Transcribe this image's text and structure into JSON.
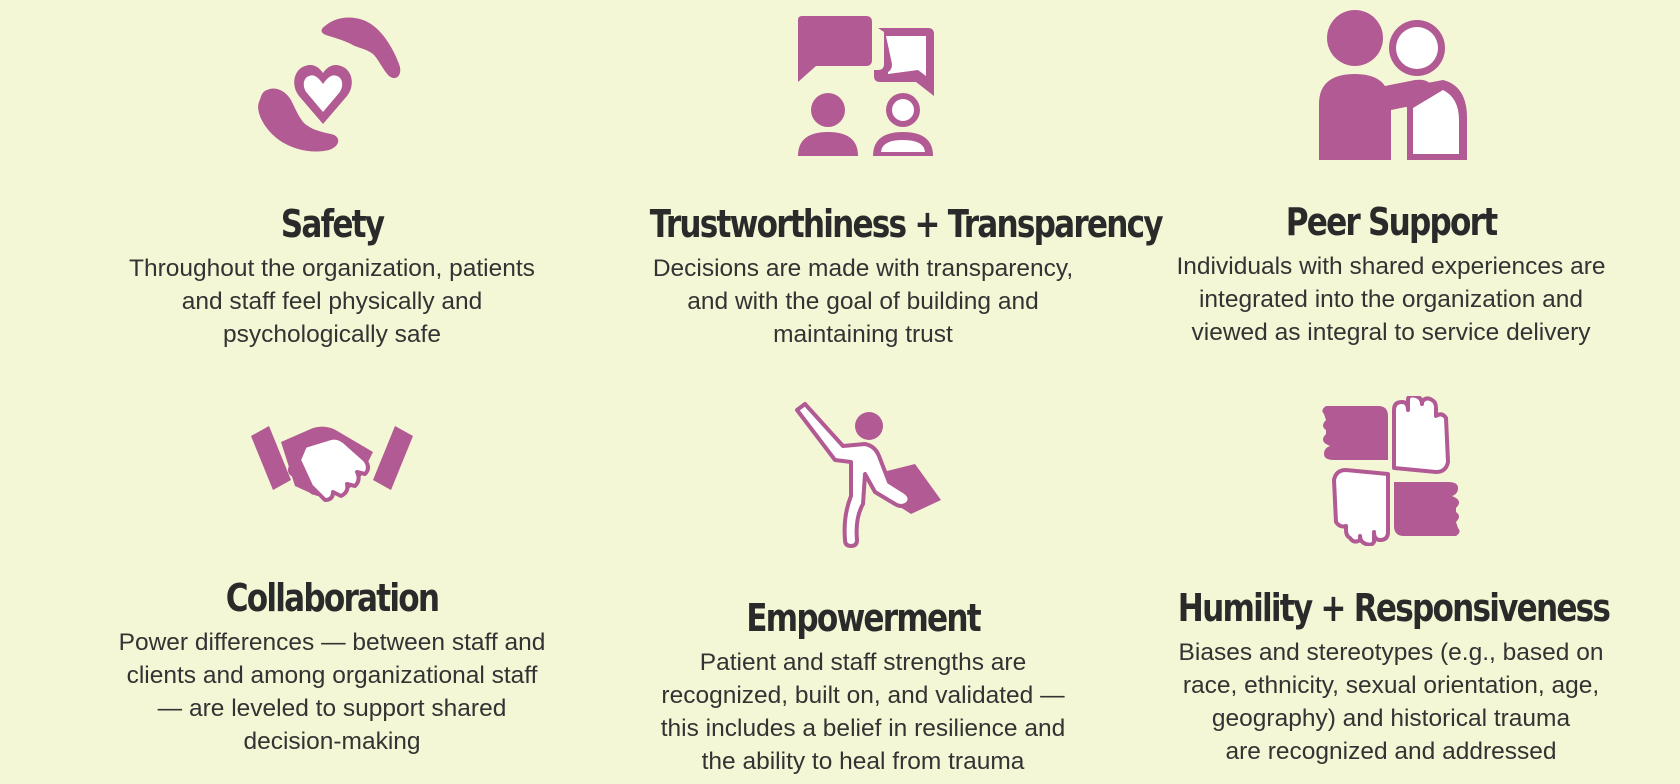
{
  "colors": {
    "background": "#f4f7d6",
    "accent": "#b25a93",
    "text": "#2b2b2b"
  },
  "cards": [
    {
      "icon": "hands-heart-icon",
      "title": "Safety",
      "lines": [
        "Throughout the organization, patients",
        "and staff feel physically and",
        "psychologically safe"
      ]
    },
    {
      "icon": "speech-bubbles-people-icon",
      "title": "Trustworthiness + Transparency",
      "lines": [
        "Decisions are made with transparency,",
        "and with the goal of building and",
        "maintaining trust"
      ]
    },
    {
      "icon": "peer-support-icon",
      "title": "Peer Support",
      "lines": [
        "Individuals with shared experiences are",
        "integrated into the organization and",
        "viewed as integral to service delivery"
      ]
    },
    {
      "icon": "handshake-icon",
      "title": "Collaboration",
      "lines": [
        "Power differences — between staff and",
        "clients and among organizational staff",
        "— are leveled to support shared",
        "decision-making"
      ]
    },
    {
      "icon": "superhero-icon",
      "title": "Empowerment",
      "lines": [
        "Patient and staff strengths are",
        "recognized, built on, and validated —",
        "this includes a belief in resilience and",
        "the ability to heal from trauma"
      ]
    },
    {
      "icon": "stacked-hands-icon",
      "title": "Humility + Responsiveness",
      "lines": [
        "Biases and stereotypes (e.g., based on",
        "race, ethnicity, sexual orientation, age,",
        "geography) and historical trauma",
        "are recognized and addressed"
      ]
    }
  ]
}
